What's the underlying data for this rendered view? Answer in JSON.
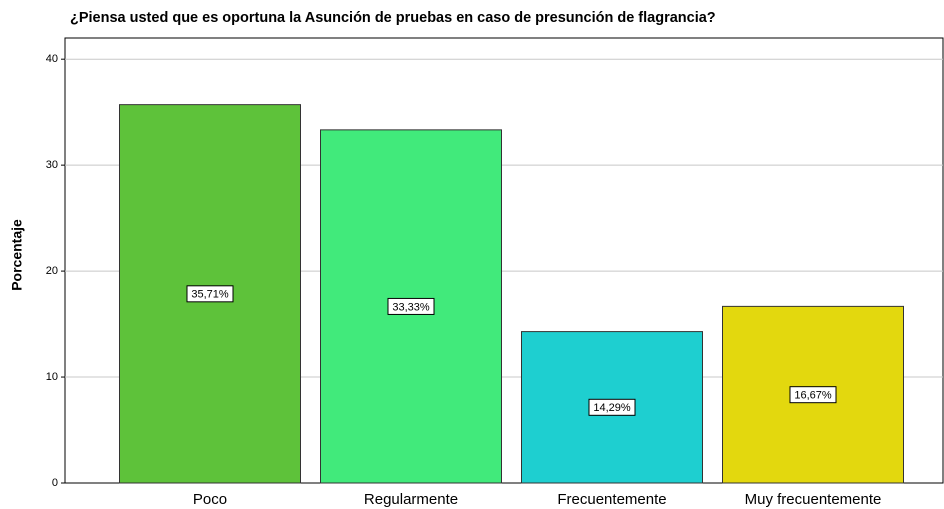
{
  "chart_data": {
    "type": "bar",
    "title": "¿Piensa usted que es oportuna la Asunción de pruebas en caso de presunción de flagrancia?",
    "y_label": "Porcentaje",
    "categories": [
      "Poco",
      "Regularmente",
      "Frecuentemente",
      "Muy frecuentemente"
    ],
    "values": [
      35.71,
      33.33,
      14.29,
      16.67
    ],
    "value_labels": [
      "35,71%",
      "33,33%",
      "14,29%",
      "16,67%"
    ],
    "colors": [
      "#5ec23a",
      "#41ea7b",
      "#1ecfd0",
      "#e3d80e"
    ],
    "ylim": [
      0,
      42
    ],
    "yticks": [
      0,
      10,
      20,
      30,
      40
    ],
    "grid": true
  }
}
